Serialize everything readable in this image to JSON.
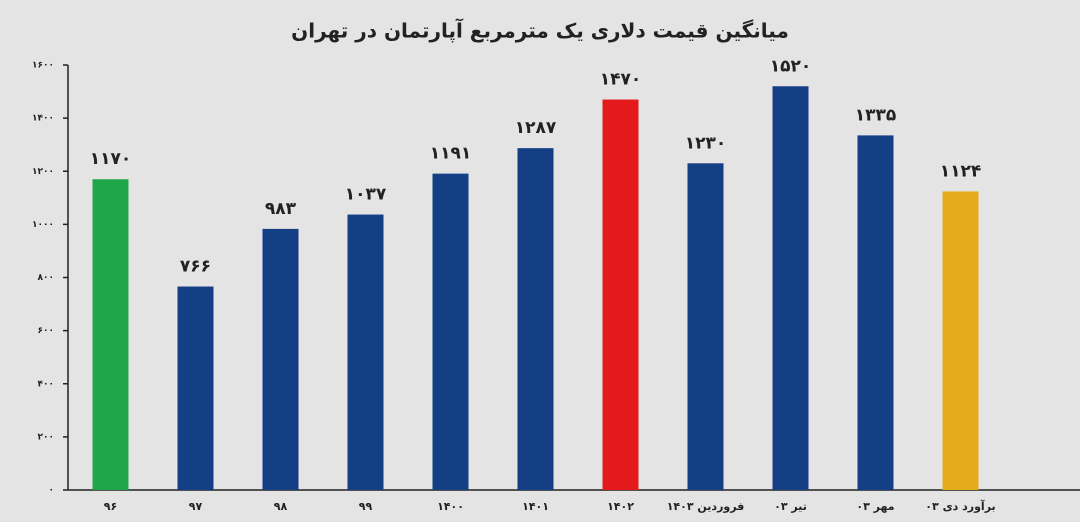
{
  "chart_data": {
    "type": "bar",
    "title": "میانگین قیمت دلاری یک مترمربع آپارتمان در تهران",
    "categories": [
      "۹۶",
      "۹۷",
      "۹۸",
      "۹۹",
      "۱۴۰۰",
      "۱۴۰۱",
      "۱۴۰۲",
      "فروردین ۱۴۰۳",
      "تیر ۰۳",
      "مهر ۰۳",
      "برآورد دی ۰۳"
    ],
    "values": [
      1170,
      766,
      983,
      1037,
      1191,
      1287,
      1470,
      1230,
      1520,
      1335,
      1124
    ],
    "value_labels": [
      "۱۱۷۰",
      "۷۶۶",
      "۹۸۳",
      "۱۰۳۷",
      "۱۱۹۱",
      "۱۲۸۷",
      "۱۴۷۰",
      "۱۲۳۰",
      "۱۵۲۰",
      "۱۳۳۵",
      "۱۱۲۴"
    ],
    "colors": [
      "#1fa64a",
      "#143f85",
      "#143f85",
      "#143f85",
      "#143f85",
      "#143f85",
      "#e3191b",
      "#143f85",
      "#143f85",
      "#143f85",
      "#e3ab1a"
    ],
    "ylim": [
      0,
      1600
    ],
    "yticks": [
      {
        "value": 0,
        "label": "۰"
      },
      {
        "value": 200,
        "label": "۲۰۰"
      },
      {
        "value": 400,
        "label": "۴۰۰"
      },
      {
        "value": 600,
        "label": "۶۰۰"
      },
      {
        "value": 800,
        "label": "۸۰۰"
      },
      {
        "value": 1000,
        "label": "۱۰۰۰"
      },
      {
        "value": 1200,
        "label": "۱۲۰۰"
      },
      {
        "value": 1400,
        "label": "۱۴۰۰"
      },
      {
        "value": 1600,
        "label": "۱۶۰۰"
      }
    ],
    "grid": false
  }
}
